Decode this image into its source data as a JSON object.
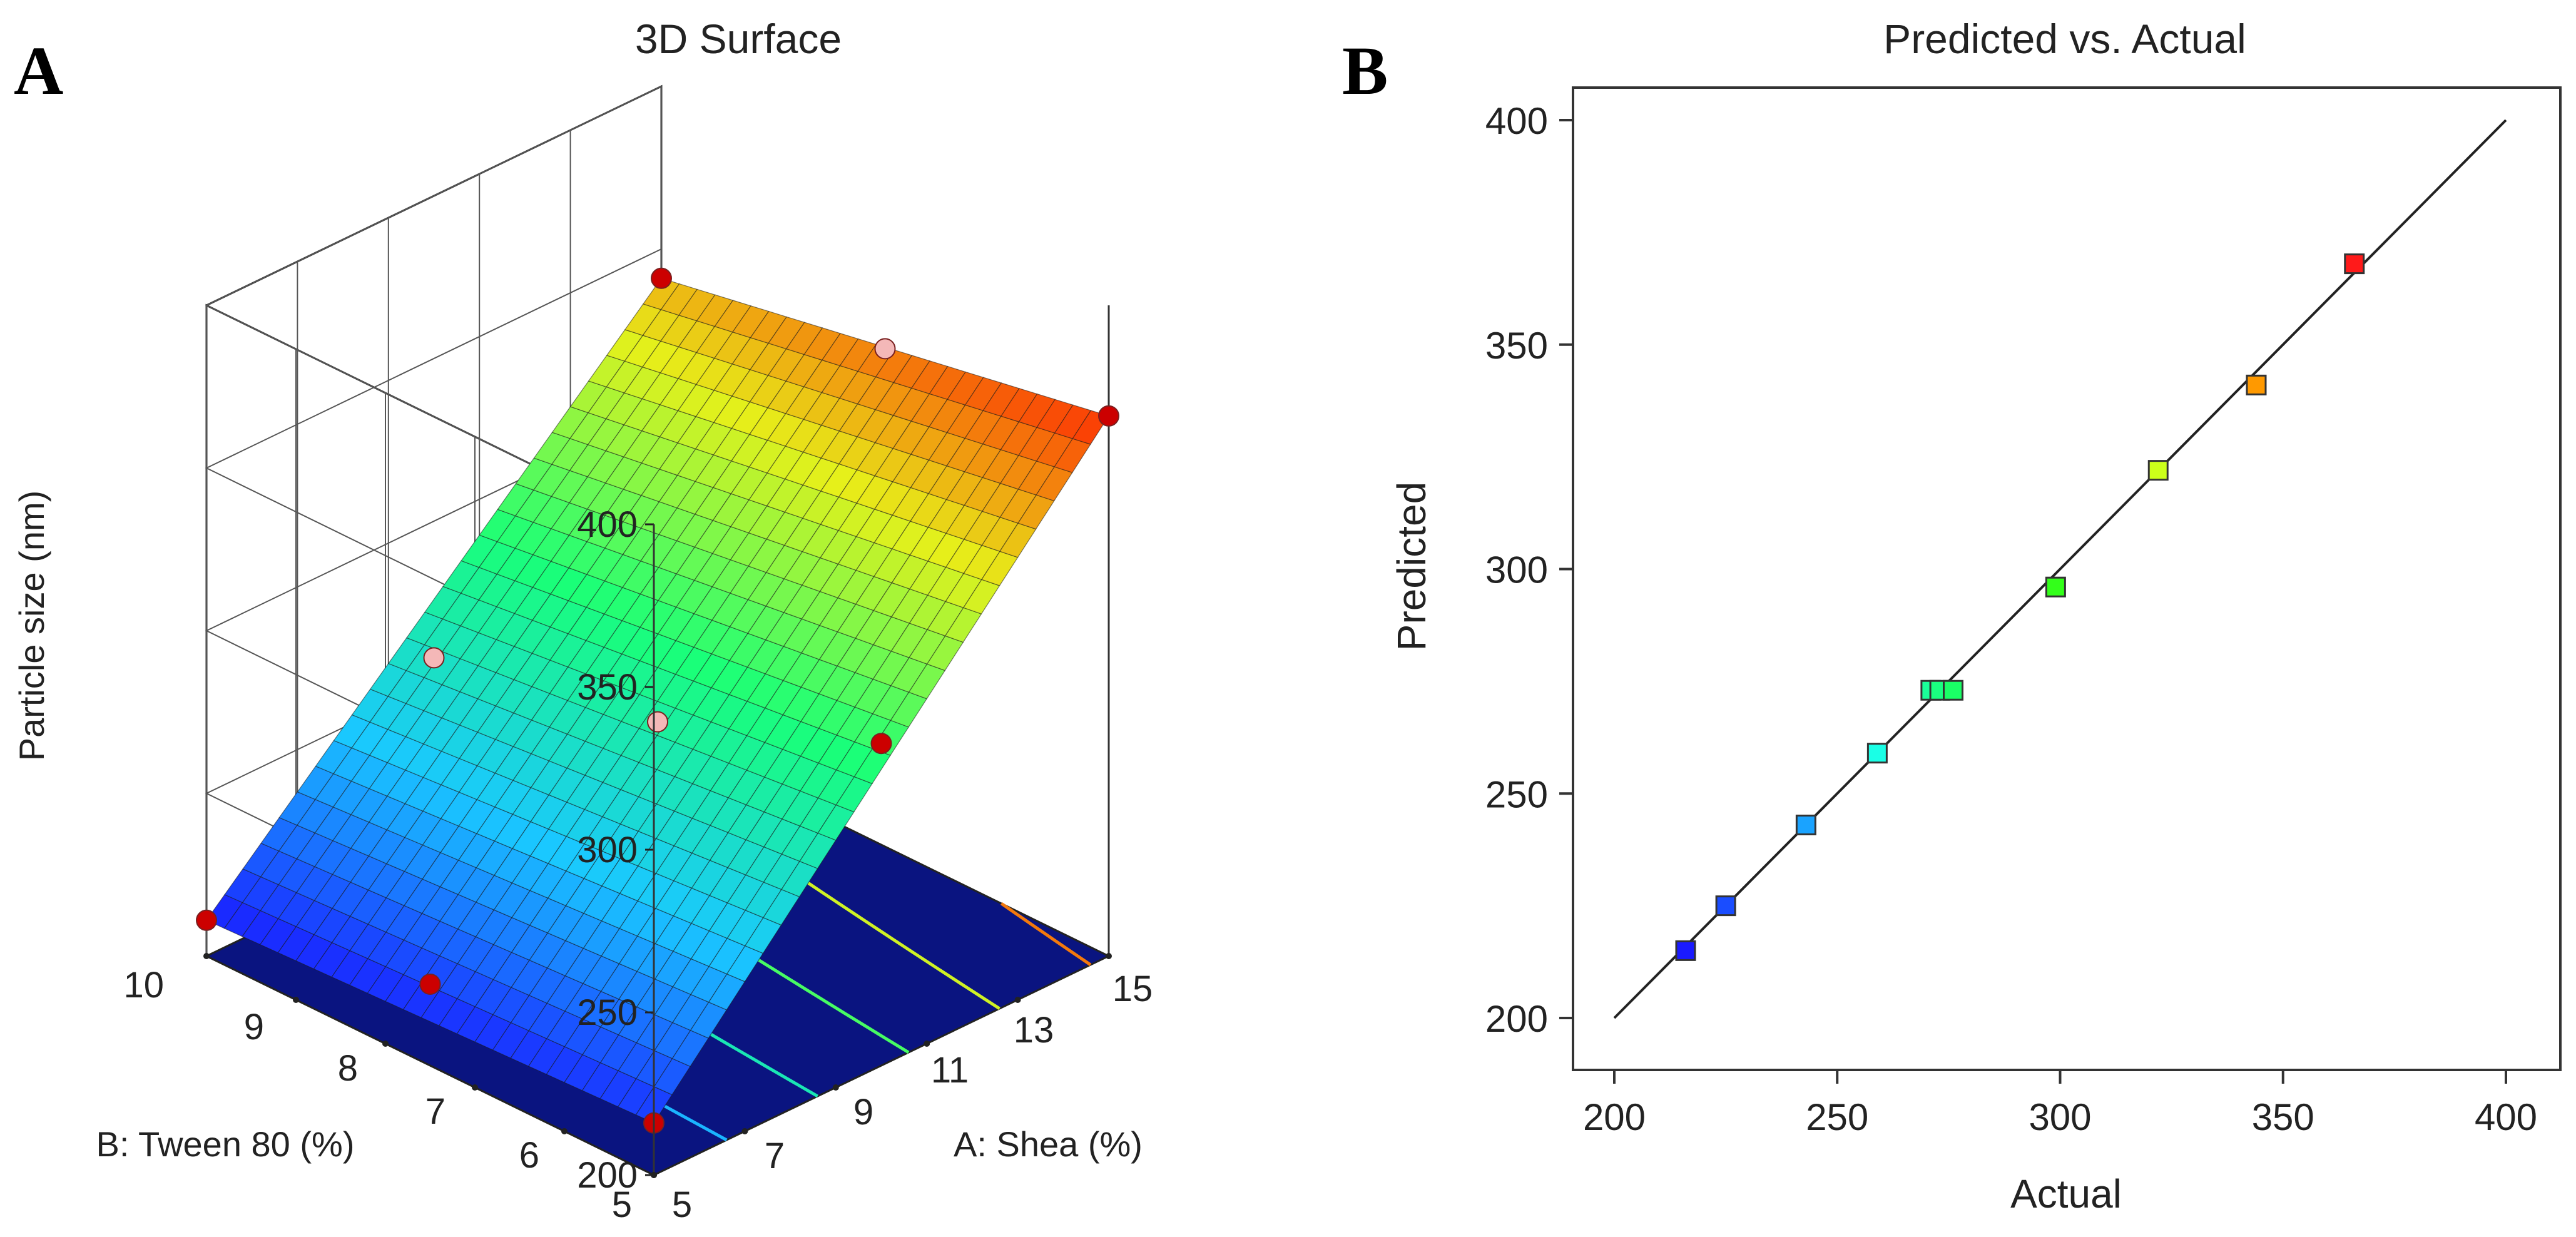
{
  "chart_data": [
    {
      "panel": "A",
      "type": "surface3d",
      "title": "3D Surface",
      "zlabel": "Particle size (nm)",
      "xlabel": "A: Shea (%)",
      "ylabel": "B: Tween 80 (%)",
      "z_ticks": [
        200,
        250,
        300,
        350,
        400
      ],
      "x_ticks": [
        5,
        7,
        9,
        11,
        13,
        15
      ],
      "y_ticks": [
        5,
        6,
        7,
        8,
        9,
        10
      ],
      "xlim": [
        5,
        15
      ],
      "ylim": [
        5,
        10
      ],
      "zlim": [
        200,
        400
      ],
      "corner_values": {
        "shea5_tween5": 216,
        "shea15_tween5": 366,
        "shea5_tween10": 211,
        "shea15_tween10": 341
      },
      "design_points": [
        {
          "shea": 5,
          "tween": 5,
          "size": 216
        },
        {
          "shea": 15,
          "tween": 5,
          "size": 366
        },
        {
          "shea": 5,
          "tween": 10,
          "size": 211
        },
        {
          "shea": 15,
          "tween": 10,
          "size": 341
        },
        {
          "shea": 10,
          "tween": 7.5,
          "size": 272
        },
        {
          "shea": 10,
          "tween": 5,
          "size": 299
        },
        {
          "shea": 10,
          "tween": 10,
          "size": 258
        },
        {
          "shea": 5,
          "tween": 7.5,
          "size": 225
        },
        {
          "shea": 15,
          "tween": 7.5,
          "size": 353
        }
      ],
      "contour_levels": [
        240,
        270,
        300,
        330,
        360
      ],
      "colors": {
        "floor": "#0a1480",
        "low": "#1a2cff",
        "high": "#ff1a00",
        "point_above": "#cc0000",
        "point_below": "#f4b8b8"
      }
    },
    {
      "panel": "B",
      "type": "scatter",
      "title": "Predicted vs. Actual",
      "xlabel": "Actual",
      "ylabel": "Predicted",
      "xlim": [
        200,
        400
      ],
      "ylim": [
        200,
        400
      ],
      "x_ticks": [
        200,
        250,
        300,
        350,
        400
      ],
      "y_ticks": [
        200,
        250,
        300,
        350,
        400
      ],
      "identity_line": true,
      "points": [
        {
          "actual": 216,
          "predicted": 215,
          "color": "#1a1aff"
        },
        {
          "actual": 225,
          "predicted": 225,
          "color": "#1a4dff"
        },
        {
          "actual": 243,
          "predicted": 243,
          "color": "#1aa3ff"
        },
        {
          "actual": 259,
          "predicted": 259,
          "color": "#1affe6"
        },
        {
          "actual": 271,
          "predicted": 273,
          "color": "#1aff99"
        },
        {
          "actual": 273,
          "predicted": 273,
          "color": "#1aff80"
        },
        {
          "actual": 276,
          "predicted": 273,
          "color": "#1aff66"
        },
        {
          "actual": 299,
          "predicted": 296,
          "color": "#33ff1a"
        },
        {
          "actual": 322,
          "predicted": 322,
          "color": "#ccff1a"
        },
        {
          "actual": 344,
          "predicted": 341,
          "color": "#ff9900"
        },
        {
          "actual": 366,
          "predicted": 368,
          "color": "#ff1a1a"
        }
      ]
    }
  ]
}
